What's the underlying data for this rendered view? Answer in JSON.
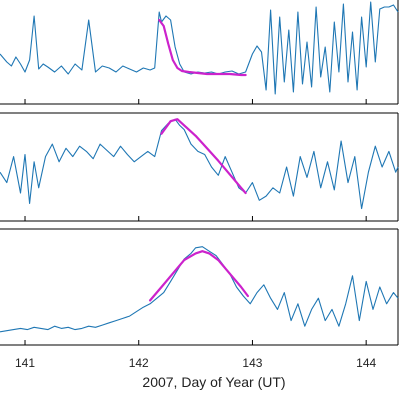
{
  "chart_data": {
    "type": "line",
    "xlabel": "2007, Day of Year (UT)",
    "xlim": [
      140.78,
      144.28
    ],
    "xticks": [
      141,
      142,
      143,
      144
    ],
    "colors": {
      "series": "#1f77b4",
      "fit": "#cc22cc"
    },
    "grid": false,
    "legend": "none",
    "panels": [
      {
        "ylim": [
          0,
          1
        ],
        "series": [
          {
            "x": [
              140.78,
              140.84,
              140.88,
              140.92,
              140.96,
              141.0,
              141.04,
              141.08,
              141.12,
              141.16,
              141.2,
              141.26,
              141.32,
              141.38,
              141.44,
              141.5,
              141.56,
              141.62,
              141.68,
              141.74,
              141.8,
              141.86,
              141.92,
              141.98,
              142.04,
              142.1,
              142.14,
              142.18,
              142.2,
              142.24,
              142.28,
              142.32,
              142.36,
              142.4,
              142.46,
              142.52,
              142.58,
              142.64,
              142.7,
              142.76,
              142.82,
              142.88,
              142.94,
              143.0,
              143.04,
              143.08,
              143.12,
              143.16,
              143.2,
              143.24,
              143.28,
              143.32,
              143.36,
              143.4,
              143.44,
              143.48,
              143.52,
              143.56,
              143.6,
              143.64,
              143.68,
              143.72,
              143.76,
              143.8,
              143.84,
              143.88,
              143.92,
              143.96,
              144.0,
              144.04,
              144.08,
              144.12,
              144.16,
              144.2,
              144.24,
              144.28
            ],
            "y": [
              0.48,
              0.4,
              0.36,
              0.45,
              0.38,
              0.3,
              0.42,
              0.86,
              0.33,
              0.38,
              0.35,
              0.3,
              0.36,
              0.28,
              0.38,
              0.32,
              0.82,
              0.3,
              0.36,
              0.34,
              0.3,
              0.36,
              0.33,
              0.3,
              0.34,
              0.32,
              0.34,
              0.9,
              0.8,
              0.86,
              0.82,
              0.55,
              0.38,
              0.3,
              0.28,
              0.3,
              0.29,
              0.3,
              0.28,
              0.3,
              0.31,
              0.28,
              0.3,
              0.48,
              0.56,
              0.5,
              0.12,
              0.92,
              0.08,
              0.85,
              0.2,
              0.72,
              0.1,
              0.9,
              0.18,
              0.6,
              0.15,
              0.95,
              0.25,
              0.55,
              0.1,
              0.8,
              0.3,
              0.98,
              0.2,
              0.7,
              0.12,
              0.85,
              0.35,
              1.0,
              0.4,
              0.93,
              0.95,
              0.95,
              0.97,
              0.9
            ]
          }
        ],
        "fit": {
          "x": [
            142.18,
            142.22,
            142.26,
            142.3,
            142.34,
            142.38,
            142.44,
            142.52,
            142.6,
            142.7,
            142.8,
            142.9,
            142.94
          ],
          "y": [
            0.82,
            0.76,
            0.58,
            0.42,
            0.34,
            0.31,
            0.3,
            0.29,
            0.28,
            0.28,
            0.28,
            0.27,
            0.27
          ]
        }
      },
      {
        "ylim": [
          0,
          1
        ],
        "series": [
          {
            "x": [
              140.78,
              140.84,
              140.9,
              140.96,
              141.0,
              141.04,
              141.08,
              141.12,
              141.18,
              141.24,
              141.3,
              141.36,
              141.42,
              141.48,
              141.54,
              141.6,
              141.66,
              141.72,
              141.78,
              141.84,
              141.9,
              141.96,
              142.02,
              142.08,
              142.14,
              142.2,
              142.26,
              142.32,
              142.36,
              142.4,
              142.46,
              142.52,
              142.58,
              142.64,
              142.7,
              142.76,
              142.82,
              142.88,
              142.94,
              143.0,
              143.06,
              143.12,
              143.18,
              143.24,
              143.3,
              143.36,
              143.42,
              143.48,
              143.54,
              143.6,
              143.66,
              143.72,
              143.78,
              143.84,
              143.9,
              143.96,
              144.02,
              144.08,
              144.14,
              144.2,
              144.26,
              144.28
            ],
            "y": [
              0.45,
              0.35,
              0.6,
              0.25,
              0.62,
              0.15,
              0.55,
              0.3,
              0.6,
              0.72,
              0.55,
              0.68,
              0.6,
              0.7,
              0.65,
              0.58,
              0.72,
              0.66,
              0.6,
              0.7,
              0.62,
              0.55,
              0.6,
              0.65,
              0.6,
              0.85,
              0.92,
              0.96,
              0.9,
              0.86,
              0.72,
              0.65,
              0.62,
              0.5,
              0.42,
              0.6,
              0.45,
              0.3,
              0.25,
              0.35,
              0.18,
              0.22,
              0.3,
              0.25,
              0.5,
              0.22,
              0.6,
              0.4,
              0.65,
              0.3,
              0.55,
              0.28,
              0.75,
              0.35,
              0.6,
              0.1,
              0.45,
              0.7,
              0.5,
              0.65,
              0.45,
              0.5
            ]
          }
        ],
        "fit": {
          "x": [
            142.2,
            142.28,
            142.34,
            142.4,
            142.5,
            142.6,
            142.7,
            142.8,
            142.9,
            142.94
          ],
          "y": [
            0.82,
            0.94,
            0.96,
            0.9,
            0.8,
            0.68,
            0.56,
            0.43,
            0.3,
            0.25
          ]
        }
      },
      {
        "ylim": [
          0,
          1
        ],
        "series": [
          {
            "x": [
              140.78,
              140.84,
              140.9,
              140.96,
              141.02,
              141.08,
              141.14,
              141.2,
              141.26,
              141.32,
              141.38,
              141.44,
              141.5,
              141.56,
              141.62,
              141.68,
              141.74,
              141.8,
              141.86,
              141.92,
              141.98,
              142.04,
              142.1,
              142.16,
              142.22,
              142.28,
              142.34,
              142.4,
              142.46,
              142.5,
              142.56,
              142.62,
              142.68,
              142.74,
              142.8,
              142.86,
              142.92,
              142.98,
              143.04,
              143.1,
              143.16,
              143.22,
              143.28,
              143.34,
              143.4,
              143.46,
              143.52,
              143.58,
              143.64,
              143.7,
              143.76,
              143.82,
              143.88,
              143.94,
              144.0,
              144.06,
              144.12,
              144.18,
              144.24,
              144.28
            ],
            "y": [
              0.1,
              0.11,
              0.12,
              0.13,
              0.12,
              0.14,
              0.13,
              0.12,
              0.15,
              0.13,
              0.14,
              0.12,
              0.13,
              0.15,
              0.14,
              0.16,
              0.18,
              0.2,
              0.22,
              0.24,
              0.28,
              0.32,
              0.35,
              0.4,
              0.45,
              0.55,
              0.65,
              0.75,
              0.8,
              0.85,
              0.86,
              0.82,
              0.78,
              0.7,
              0.62,
              0.5,
              0.42,
              0.35,
              0.45,
              0.52,
              0.4,
              0.3,
              0.45,
              0.2,
              0.35,
              0.15,
              0.3,
              0.4,
              0.2,
              0.3,
              0.15,
              0.35,
              0.6,
              0.2,
              0.55,
              0.3,
              0.5,
              0.35,
              0.45,
              0.4
            ]
          }
        ],
        "fit": {
          "x": [
            142.1,
            142.2,
            142.3,
            142.4,
            142.5,
            142.56,
            142.62,
            142.7,
            142.8,
            142.9,
            142.96
          ],
          "y": [
            0.38,
            0.5,
            0.62,
            0.74,
            0.8,
            0.82,
            0.8,
            0.74,
            0.62,
            0.5,
            0.42
          ]
        }
      }
    ]
  }
}
